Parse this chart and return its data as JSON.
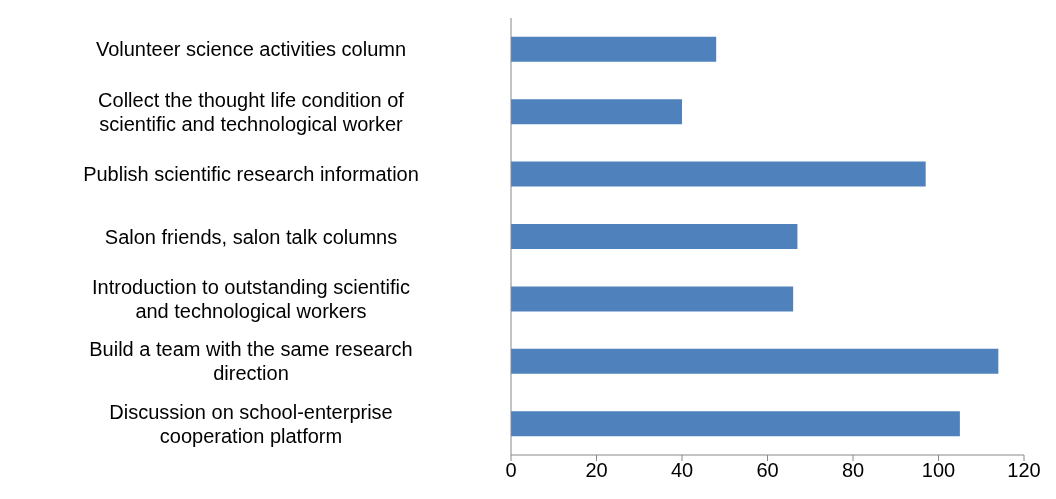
{
  "chart_data": {
    "type": "bar",
    "orientation": "horizontal",
    "categories": [
      "Volunteer science activities column",
      "Collect the thought life condition of scientific and technological worker",
      "Publish scientific research information",
      "Salon friends, salon talk columns",
      "Introduction to outstanding scientific and technological workers",
      "Build a team with the same research direction",
      "Discussion on school-enterprise cooperation platform"
    ],
    "values": [
      48,
      40,
      97,
      67,
      66,
      114,
      105
    ],
    "color": "#4f81bd",
    "xlim": [
      0,
      120
    ],
    "xticks": [
      0,
      20,
      40,
      60,
      80,
      100,
      120
    ],
    "grid": false,
    "legend": false
  }
}
